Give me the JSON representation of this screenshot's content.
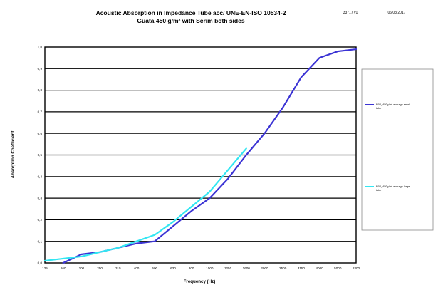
{
  "chart_data": {
    "type": "line",
    "title": "Acoustic Absorption in Impedance Tube acc/ UNE-EN-ISO 10534-2",
    "subtitle": "Guata 450 g/m² with Scrim both sides",
    "header_code": "33717 v1",
    "header_date": "06/03/2017",
    "xlabel": "Frequency (Hz)",
    "ylabel": "Absorption Coefficient",
    "x_scale": "log",
    "categories": [
      "125",
      "160",
      "200",
      "250",
      "315",
      "400",
      "500",
      "630",
      "800",
      "1000",
      "1250",
      "1600",
      "2000",
      "2500",
      "3150",
      "4000",
      "5000",
      "6300"
    ],
    "y_ticks": [
      "0,0",
      "0,1",
      "0,2",
      "0,3",
      "0,4",
      "0,5",
      "0,6",
      "0,7",
      "0,8",
      "0,9",
      "1,0"
    ],
    "ylim": [
      0,
      1
    ],
    "grid": "horizontal",
    "legend_position": "right",
    "series": [
      {
        "name": "R02_450g/m² average small tube",
        "color": "#3b33d4",
        "x": [
          "160",
          "200",
          "250",
          "315",
          "400",
          "500",
          "630",
          "800",
          "1000",
          "1250",
          "1600",
          "2000",
          "2500",
          "3150",
          "4000",
          "5000",
          "6300"
        ],
        "values": [
          0.0,
          0.04,
          0.05,
          0.07,
          0.09,
          0.1,
          0.17,
          0.24,
          0.3,
          0.39,
          0.5,
          0.6,
          0.72,
          0.86,
          0.95,
          0.98,
          0.99
        ]
      },
      {
        "name": "R02_450g/m² average large tube",
        "color": "#33e6f2",
        "x": [
          "125",
          "160",
          "200",
          "250",
          "315",
          "400",
          "500",
          "630",
          "800",
          "1000",
          "1250",
          "1600"
        ],
        "values": [
          0.01,
          0.02,
          0.03,
          0.05,
          0.07,
          0.1,
          0.13,
          0.19,
          0.26,
          0.33,
          0.43,
          0.53
        ]
      }
    ]
  }
}
